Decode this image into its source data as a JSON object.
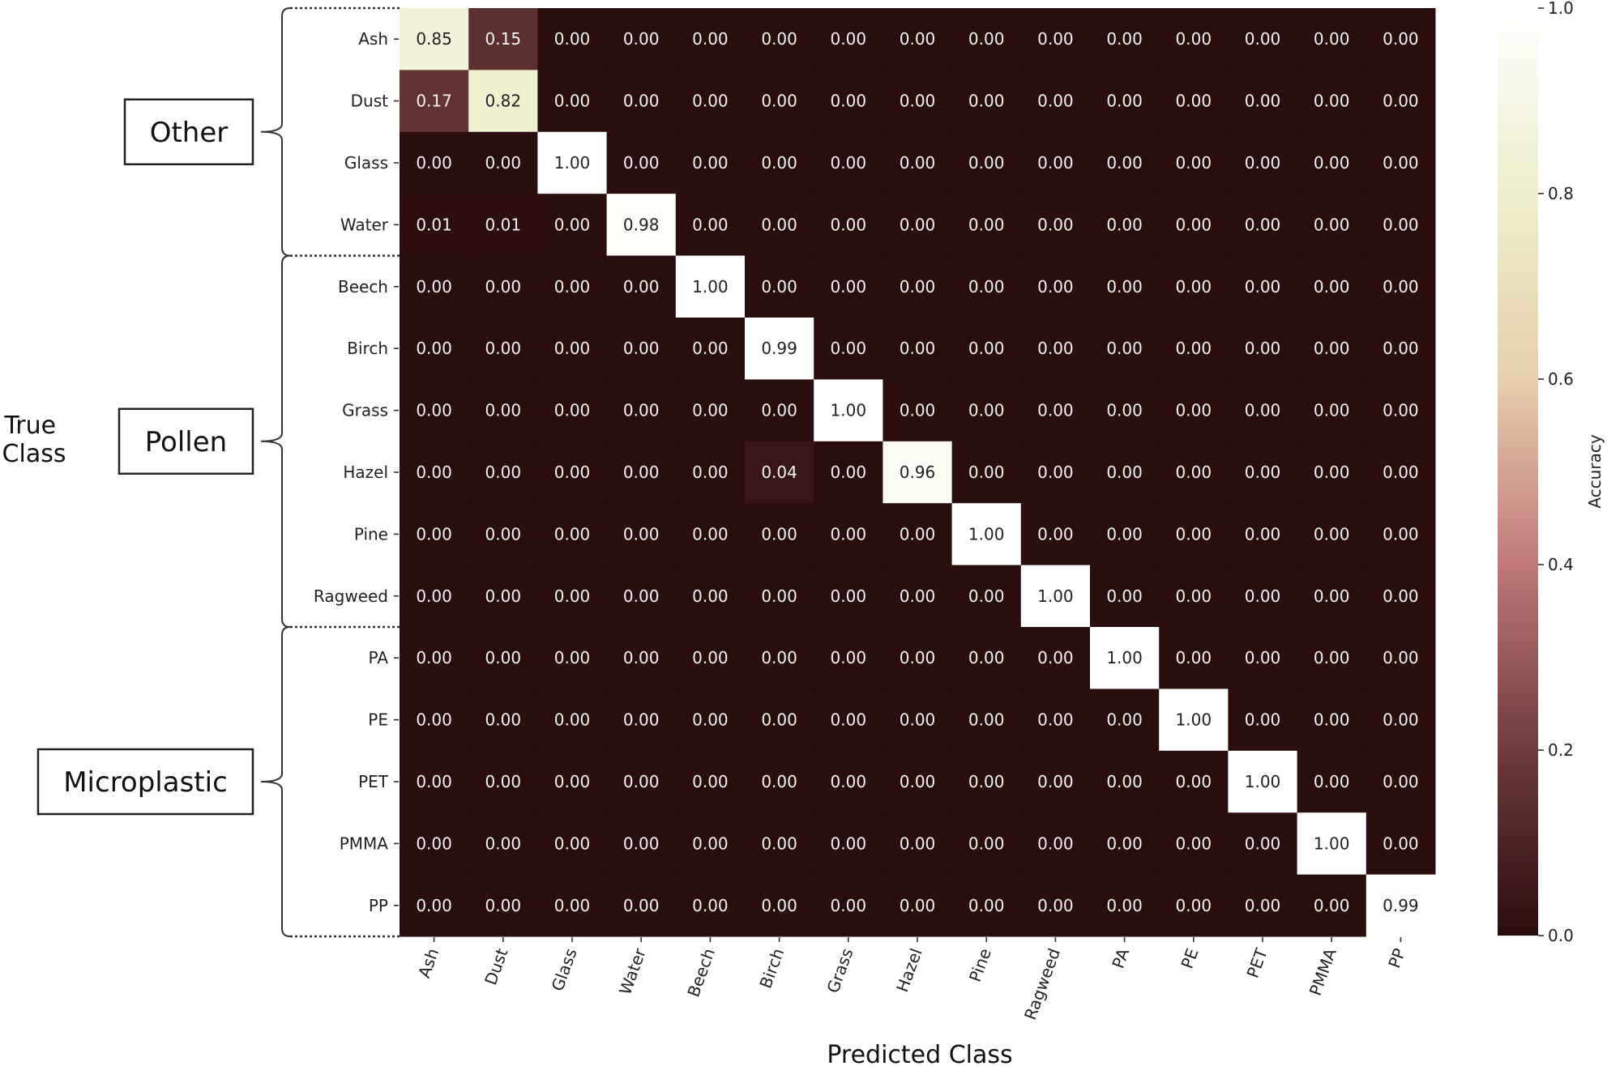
{
  "chart_data": {
    "type": "heatmap",
    "x_categories": [
      "Ash",
      "Dust",
      "Glass",
      "Water",
      "Beech",
      "Birch",
      "Grass",
      "Hazel",
      "Pine",
      "Ragweed",
      "PA",
      "PE",
      "PET",
      "PMMA",
      "PP"
    ],
    "y_categories": [
      "Ash",
      "Dust",
      "Glass",
      "Water",
      "Beech",
      "Birch",
      "Grass",
      "Hazel",
      "Pine",
      "Ragweed",
      "PA",
      "PE",
      "PET",
      "PMMA",
      "PP"
    ],
    "values": [
      [
        0.85,
        0.15,
        0.0,
        0.0,
        0.0,
        0.0,
        0.0,
        0.0,
        0.0,
        0.0,
        0.0,
        0.0,
        0.0,
        0.0,
        0.0
      ],
      [
        0.17,
        0.82,
        0.0,
        0.0,
        0.0,
        0.0,
        0.0,
        0.0,
        0.0,
        0.0,
        0.0,
        0.0,
        0.0,
        0.0,
        0.0
      ],
      [
        0.0,
        0.0,
        1.0,
        0.0,
        0.0,
        0.0,
        0.0,
        0.0,
        0.0,
        0.0,
        0.0,
        0.0,
        0.0,
        0.0,
        0.0
      ],
      [
        0.01,
        0.01,
        0.0,
        0.98,
        0.0,
        0.0,
        0.0,
        0.0,
        0.0,
        0.0,
        0.0,
        0.0,
        0.0,
        0.0,
        0.0
      ],
      [
        0.0,
        0.0,
        0.0,
        0.0,
        1.0,
        0.0,
        0.0,
        0.0,
        0.0,
        0.0,
        0.0,
        0.0,
        0.0,
        0.0,
        0.0
      ],
      [
        0.0,
        0.0,
        0.0,
        0.0,
        0.0,
        0.99,
        0.0,
        0.0,
        0.0,
        0.0,
        0.0,
        0.0,
        0.0,
        0.0,
        0.0
      ],
      [
        0.0,
        0.0,
        0.0,
        0.0,
        0.0,
        0.0,
        1.0,
        0.0,
        0.0,
        0.0,
        0.0,
        0.0,
        0.0,
        0.0,
        0.0
      ],
      [
        0.0,
        0.0,
        0.0,
        0.0,
        0.0,
        0.04,
        0.0,
        0.96,
        0.0,
        0.0,
        0.0,
        0.0,
        0.0,
        0.0,
        0.0
      ],
      [
        0.0,
        0.0,
        0.0,
        0.0,
        0.0,
        0.0,
        0.0,
        0.0,
        1.0,
        0.0,
        0.0,
        0.0,
        0.0,
        0.0,
        0.0
      ],
      [
        0.0,
        0.0,
        0.0,
        0.0,
        0.0,
        0.0,
        0.0,
        0.0,
        0.0,
        1.0,
        0.0,
        0.0,
        0.0,
        0.0,
        0.0
      ],
      [
        0.0,
        0.0,
        0.0,
        0.0,
        0.0,
        0.0,
        0.0,
        0.0,
        0.0,
        0.0,
        1.0,
        0.0,
        0.0,
        0.0,
        0.0
      ],
      [
        0.0,
        0.0,
        0.0,
        0.0,
        0.0,
        0.0,
        0.0,
        0.0,
        0.0,
        0.0,
        0.0,
        1.0,
        0.0,
        0.0,
        0.0
      ],
      [
        0.0,
        0.0,
        0.0,
        0.0,
        0.0,
        0.0,
        0.0,
        0.0,
        0.0,
        0.0,
        0.0,
        0.0,
        1.0,
        0.0,
        0.0
      ],
      [
        0.0,
        0.0,
        0.0,
        0.0,
        0.0,
        0.0,
        0.0,
        0.0,
        0.0,
        0.0,
        0.0,
        0.0,
        0.0,
        1.0,
        0.0
      ],
      [
        0.0,
        0.0,
        0.0,
        0.0,
        0.0,
        0.0,
        0.0,
        0.0,
        0.0,
        0.0,
        0.0,
        0.0,
        0.0,
        0.0,
        0.99
      ]
    ],
    "xlabel": "Predicted Class",
    "ylabel": "True Class",
    "colorbar": {
      "label": "Accuracy",
      "range": [
        0.0,
        1.0
      ],
      "ticks": [
        "0.0",
        "0.2",
        "0.4",
        "0.6",
        "0.8",
        "1.0"
      ],
      "colors": [
        "#2a0d0d",
        "#6e3b3b",
        "#c07878",
        "#e7cfae",
        "#eeeecc",
        "#ffffff"
      ]
    },
    "groups": [
      {
        "label": "Other",
        "rows": [
          0,
          3
        ]
      },
      {
        "label": "Pollen",
        "rows": [
          4,
          9
        ]
      },
      {
        "label": "Microplastic",
        "rows": [
          10,
          14
        ]
      }
    ]
  }
}
